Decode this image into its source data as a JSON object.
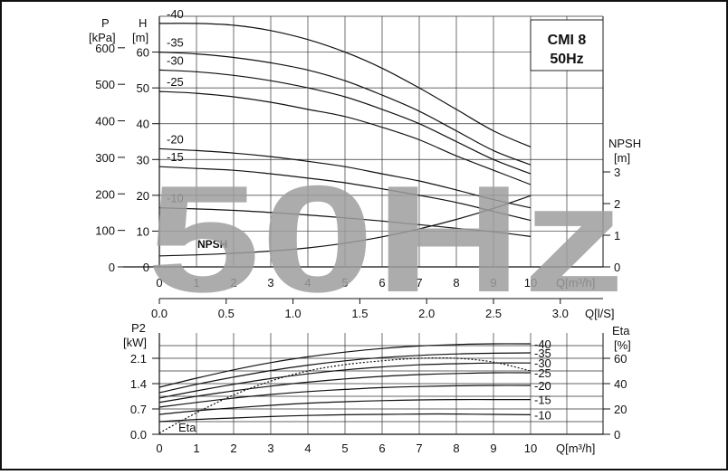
{
  "title": {
    "model": "CMI 8",
    "freq": "50Hz"
  },
  "watermark": "50Hz",
  "colors": {
    "line": "#111111",
    "grid": "#222222",
    "watermark": "#9e9e9e",
    "background": "#ffffff"
  },
  "chart_data": [
    {
      "type": "line",
      "name": "head-curves",
      "x_label": "Q[m³/h]",
      "x_ticks": [
        "0",
        "1",
        "2",
        "3",
        "4",
        "5",
        "6",
        "7",
        "8",
        "9",
        "10"
      ],
      "x2_label": "Q[l/S]",
      "x2_ticks": [
        "0.0",
        "0.5",
        "1.0",
        "1.5",
        "2.0",
        "2.5",
        "3.0"
      ],
      "y_left_p": {
        "label_line1": "P",
        "label_line2": "[kPa]",
        "ticks": [
          "0",
          "100",
          "200",
          "300",
          "400",
          "500",
          "600"
        ]
      },
      "y_left_h": {
        "label_line1": "H",
        "label_line2": "[m]",
        "ticks": [
          "0",
          "10",
          "20",
          "30",
          "40",
          "50",
          "60"
        ]
      },
      "y_right_npsh": {
        "label_line1": "NPSH",
        "label_line2": "[m]",
        "ticks": [
          "0",
          "1",
          "2",
          "3"
        ]
      },
      "xlim": [
        0,
        10
      ],
      "ylim_h": [
        0,
        70
      ],
      "ylim_npsh": [
        0,
        3
      ],
      "series": [
        {
          "name": "-40",
          "x": [
            0,
            1,
            2,
            3,
            4,
            5,
            6,
            7,
            8,
            9,
            10
          ],
          "y": [
            68,
            68,
            67.5,
            66,
            63.5,
            60,
            55.5,
            50,
            44,
            38,
            33.5
          ]
        },
        {
          "name": "-35",
          "x": [
            0,
            1,
            2,
            3,
            4,
            5,
            6,
            7,
            8,
            9,
            10
          ],
          "y": [
            60,
            59.5,
            58.5,
            57,
            55,
            52,
            48,
            43.5,
            38,
            32.5,
            28.5
          ]
        },
        {
          "name": "-30",
          "x": [
            0,
            1,
            2,
            3,
            4,
            5,
            6,
            7,
            8,
            9,
            10
          ],
          "y": [
            55,
            54.5,
            53.5,
            52,
            50,
            47.5,
            44,
            40,
            35,
            30,
            26
          ]
        },
        {
          "name": "-25",
          "x": [
            0,
            1,
            2,
            3,
            4,
            5,
            6,
            7,
            8,
            9,
            10
          ],
          "y": [
            49,
            48.5,
            47.5,
            46,
            44,
            42,
            39,
            35.5,
            31,
            27,
            23
          ]
        },
        {
          "name": "-20",
          "x": [
            0,
            1,
            2,
            3,
            4,
            5,
            6,
            7,
            8,
            9,
            10
          ],
          "y": [
            33,
            32.5,
            31.8,
            30.8,
            29.5,
            28,
            26,
            24,
            21.5,
            18.8,
            16.5
          ]
        },
        {
          "name": "-15",
          "x": [
            0,
            1,
            2,
            3,
            4,
            5,
            6,
            7,
            8,
            9,
            10
          ],
          "y": [
            28,
            27.5,
            27,
            26,
            24.8,
            23.5,
            21.8,
            20,
            18,
            15.5,
            13
          ]
        },
        {
          "name": "-10",
          "x": [
            0,
            1,
            2,
            3,
            4,
            5,
            6,
            7,
            8,
            9,
            10
          ],
          "y": [
            16.5,
            16.2,
            15.8,
            15.2,
            14.5,
            13.7,
            12.8,
            11.8,
            10.8,
            9.8,
            8.5
          ]
        }
      ],
      "npsh": {
        "label": "NPSH",
        "x": [
          0,
          1,
          2,
          3,
          4,
          5,
          6,
          7,
          8,
          9,
          10
        ],
        "y": [
          0.35,
          0.38,
          0.43,
          0.5,
          0.6,
          0.75,
          0.95,
          1.2,
          1.5,
          1.85,
          2.25
        ]
      }
    },
    {
      "type": "line",
      "name": "power-curves",
      "x_label": "Q[m³/h]",
      "x_ticks": [
        "0",
        "1",
        "2",
        "3",
        "4",
        "5",
        "6",
        "7",
        "8",
        "9",
        "10"
      ],
      "y_left": {
        "label_line1": "P2",
        "label_line2": "[kW]",
        "ticks": [
          "0.0",
          "0.7",
          "1.4",
          "2.1"
        ]
      },
      "y_right": {
        "label_line1": "Eta",
        "label_line2": "[%]",
        "ticks": [
          "0",
          "20",
          "40",
          "60"
        ]
      },
      "xlim": [
        0,
        10
      ],
      "ylim": [
        0,
        2.8
      ],
      "ylim_eta": [
        0,
        80
      ],
      "series": [
        {
          "name": "-40",
          "x": [
            0,
            1,
            2,
            3,
            4,
            5,
            6,
            7,
            8,
            9,
            10
          ],
          "y": [
            1.3,
            1.55,
            1.78,
            1.98,
            2.14,
            2.27,
            2.37,
            2.44,
            2.48,
            2.5,
            2.5
          ]
        },
        {
          "name": "-35",
          "x": [
            0,
            1,
            2,
            3,
            4,
            5,
            6,
            7,
            8,
            9,
            10
          ],
          "y": [
            1.15,
            1.38,
            1.58,
            1.76,
            1.91,
            2.03,
            2.12,
            2.18,
            2.22,
            2.24,
            2.25
          ]
        },
        {
          "name": "-30",
          "x": [
            0,
            1,
            2,
            3,
            4,
            5,
            6,
            7,
            8,
            9,
            10
          ],
          "y": [
            1.0,
            1.2,
            1.38,
            1.54,
            1.67,
            1.78,
            1.86,
            1.92,
            1.95,
            1.97,
            1.97
          ]
        },
        {
          "name": "-25",
          "x": [
            0,
            1,
            2,
            3,
            4,
            5,
            6,
            7,
            8,
            9,
            10
          ],
          "y": [
            0.88,
            1.05,
            1.2,
            1.33,
            1.44,
            1.53,
            1.6,
            1.65,
            1.68,
            1.7,
            1.7
          ]
        },
        {
          "name": "-20",
          "x": [
            0,
            1,
            2,
            3,
            4,
            5,
            6,
            7,
            8,
            9,
            10
          ],
          "y": [
            0.75,
            0.88,
            1.0,
            1.1,
            1.18,
            1.24,
            1.29,
            1.32,
            1.34,
            1.35,
            1.35
          ]
        },
        {
          "name": "-15",
          "x": [
            0,
            1,
            2,
            3,
            4,
            5,
            6,
            7,
            8,
            9,
            10
          ],
          "y": [
            0.55,
            0.65,
            0.73,
            0.8,
            0.86,
            0.9,
            0.93,
            0.95,
            0.96,
            0.96,
            0.96
          ]
        },
        {
          "name": "-10",
          "x": [
            0,
            1,
            2,
            3,
            4,
            5,
            6,
            7,
            8,
            9,
            10
          ],
          "y": [
            0.35,
            0.41,
            0.45,
            0.49,
            0.52,
            0.54,
            0.55,
            0.56,
            0.56,
            0.55,
            0.54
          ]
        }
      ],
      "eta": {
        "label": "Eta",
        "x": [
          0,
          1,
          2,
          3,
          4,
          5,
          6,
          7,
          8,
          9,
          10
        ],
        "y": [
          1,
          17,
          31,
          42,
          50,
          55,
          58,
          60,
          60,
          57,
          50
        ]
      }
    }
  ]
}
